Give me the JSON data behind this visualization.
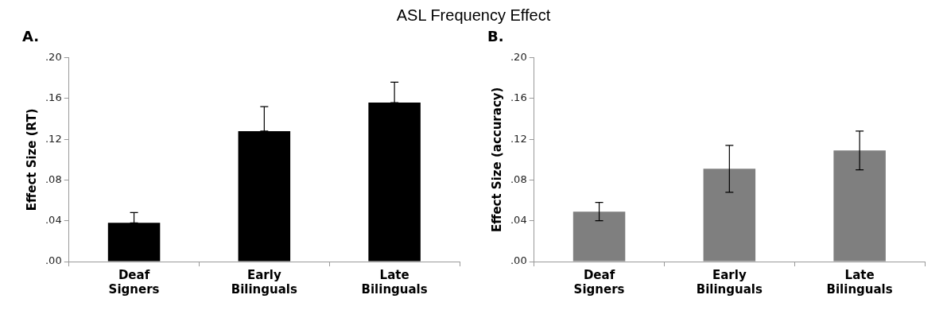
{
  "chart_data": [
    {
      "type": "bar",
      "title": "A.",
      "annotations": [
        "ASL Frequency Effect"
      ],
      "ylabel": "Effect Size (RT)",
      "categories": [
        "Deaf Signers",
        "Early Bilinguals",
        "Late Bilinguals"
      ],
      "values": [
        0.038,
        0.128,
        0.156
      ],
      "errors": [
        [
          0.038,
          0.048
        ],
        [
          0.128,
          0.152
        ],
        [
          0.156,
          0.176
        ]
      ],
      "color": "#000000",
      "ylim": [
        0,
        0.2
      ],
      "yticks": [
        {
          "value": 0,
          "label": ".00"
        },
        {
          "value": 0.04,
          "label": ".04"
        },
        {
          "value": 0.08,
          "label": ".08"
        },
        {
          "value": 0.12,
          "label": ".12"
        },
        {
          "value": 0.16,
          "label": ".16"
        },
        {
          "value": 0.2,
          "label": ".20"
        }
      ],
      "grid": false,
      "legend": false
    },
    {
      "type": "bar",
      "title": "B.",
      "ylabel": "Effect Size (accuracy)",
      "categories": [
        "Deaf Signers",
        "Early Bilinguals",
        "Late Bilinguals"
      ],
      "values": [
        0.049,
        0.091,
        0.109
      ],
      "errors": [
        [
          0.04,
          0.058
        ],
        [
          0.068,
          0.114
        ],
        [
          0.09,
          0.128
        ]
      ],
      "color": "#7f7f7f",
      "ylim": [
        0,
        0.2
      ],
      "yticks": [
        {
          "value": 0,
          "label": ".00"
        },
        {
          "value": 0.04,
          "label": ".04"
        },
        {
          "value": 0.08,
          "label": ".08"
        },
        {
          "value": 0.12,
          "label": ".12"
        },
        {
          "value": 0.16,
          "label": ".16"
        },
        {
          "value": 0.2,
          "label": ".20"
        }
      ],
      "grid": false,
      "legend": false
    }
  ]
}
